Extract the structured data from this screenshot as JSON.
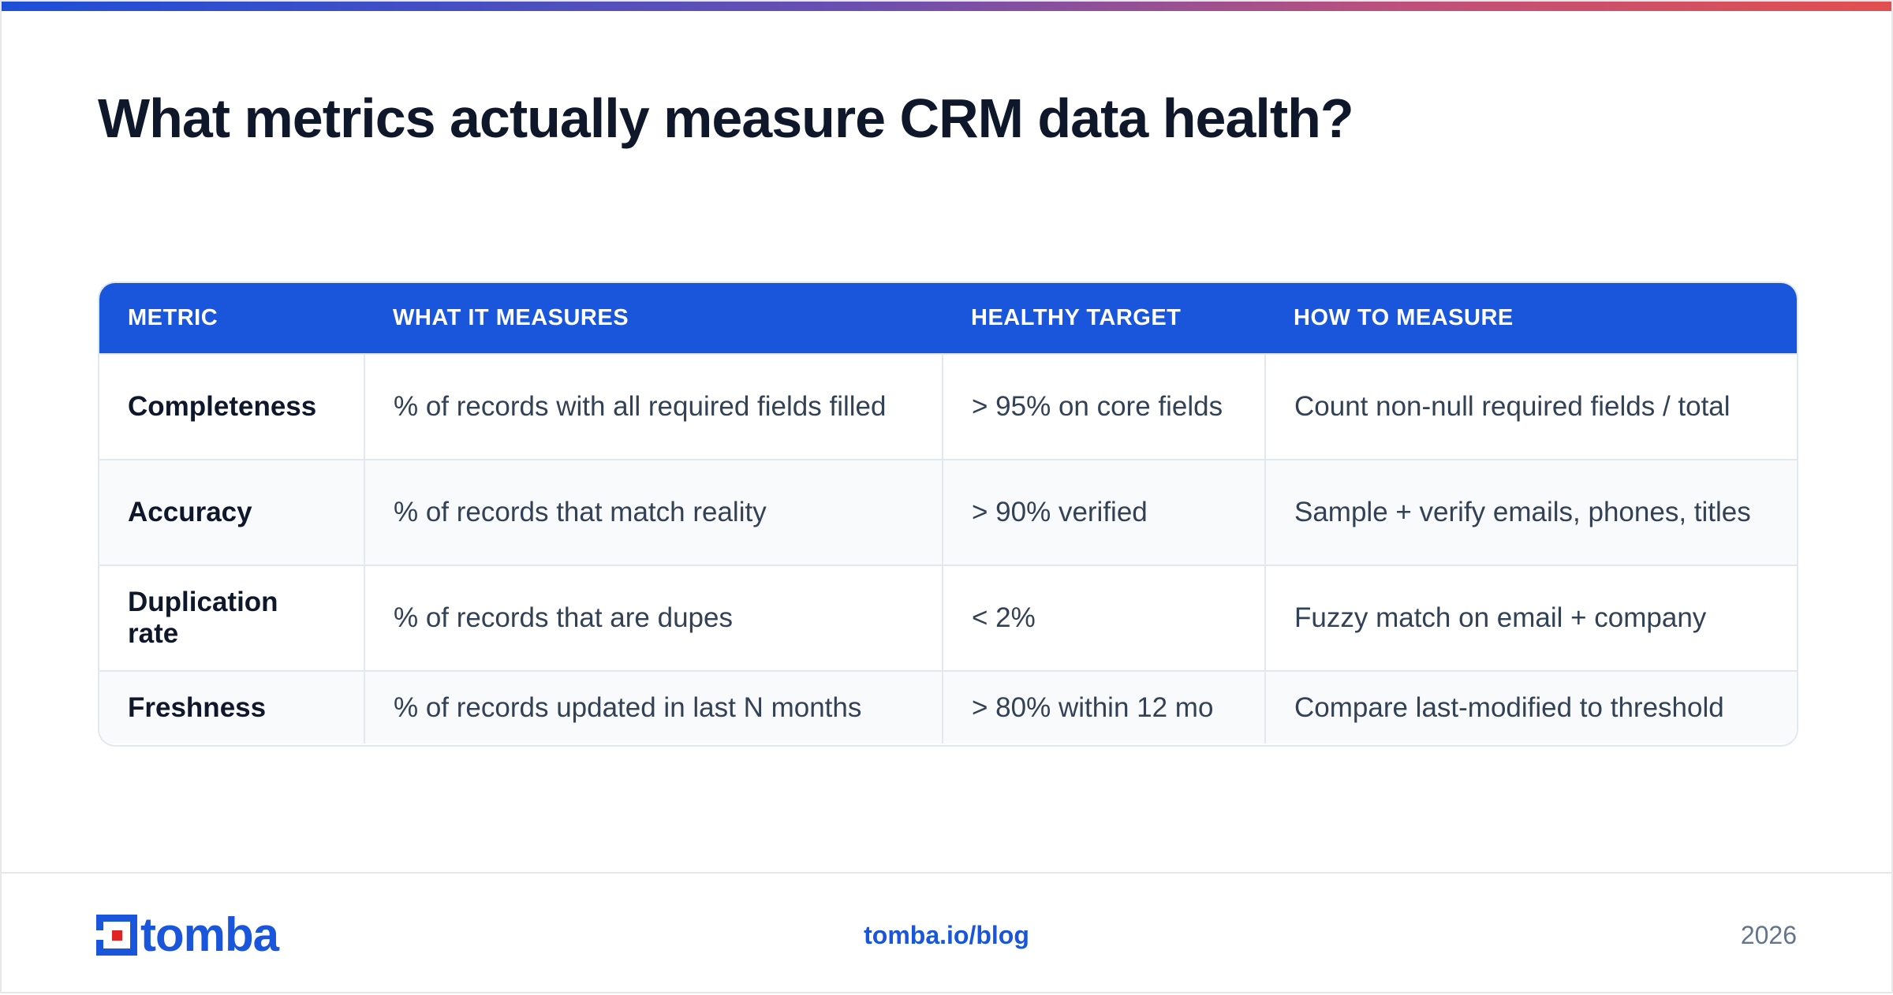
{
  "title": "What metrics actually measure CRM data health?",
  "table": {
    "headers": [
      "METRIC",
      "WHAT IT MEASURES",
      "HEALTHY TARGET",
      "HOW TO MEASURE"
    ],
    "rows": [
      [
        "Completeness",
        "% of records with all required fields filled",
        "> 95% on core fields",
        "Count non-null required fields / total"
      ],
      [
        "Accuracy",
        "% of records that match reality",
        "> 90% verified",
        "Sample + verify emails, phones, titles"
      ],
      [
        "Duplication rate",
        "% of records that are dupes",
        "< 2%",
        "Fuzzy match on email + company"
      ],
      [
        "Freshness",
        "% of records updated in last N months",
        "> 80% within 12 mo",
        "Compare last-modified to threshold"
      ]
    ]
  },
  "footer": {
    "logo_text": "tomba",
    "link": "tomba.io/blog",
    "year": "2026"
  },
  "colors": {
    "accent": "#1a56db",
    "logo_red": "#e02424"
  }
}
